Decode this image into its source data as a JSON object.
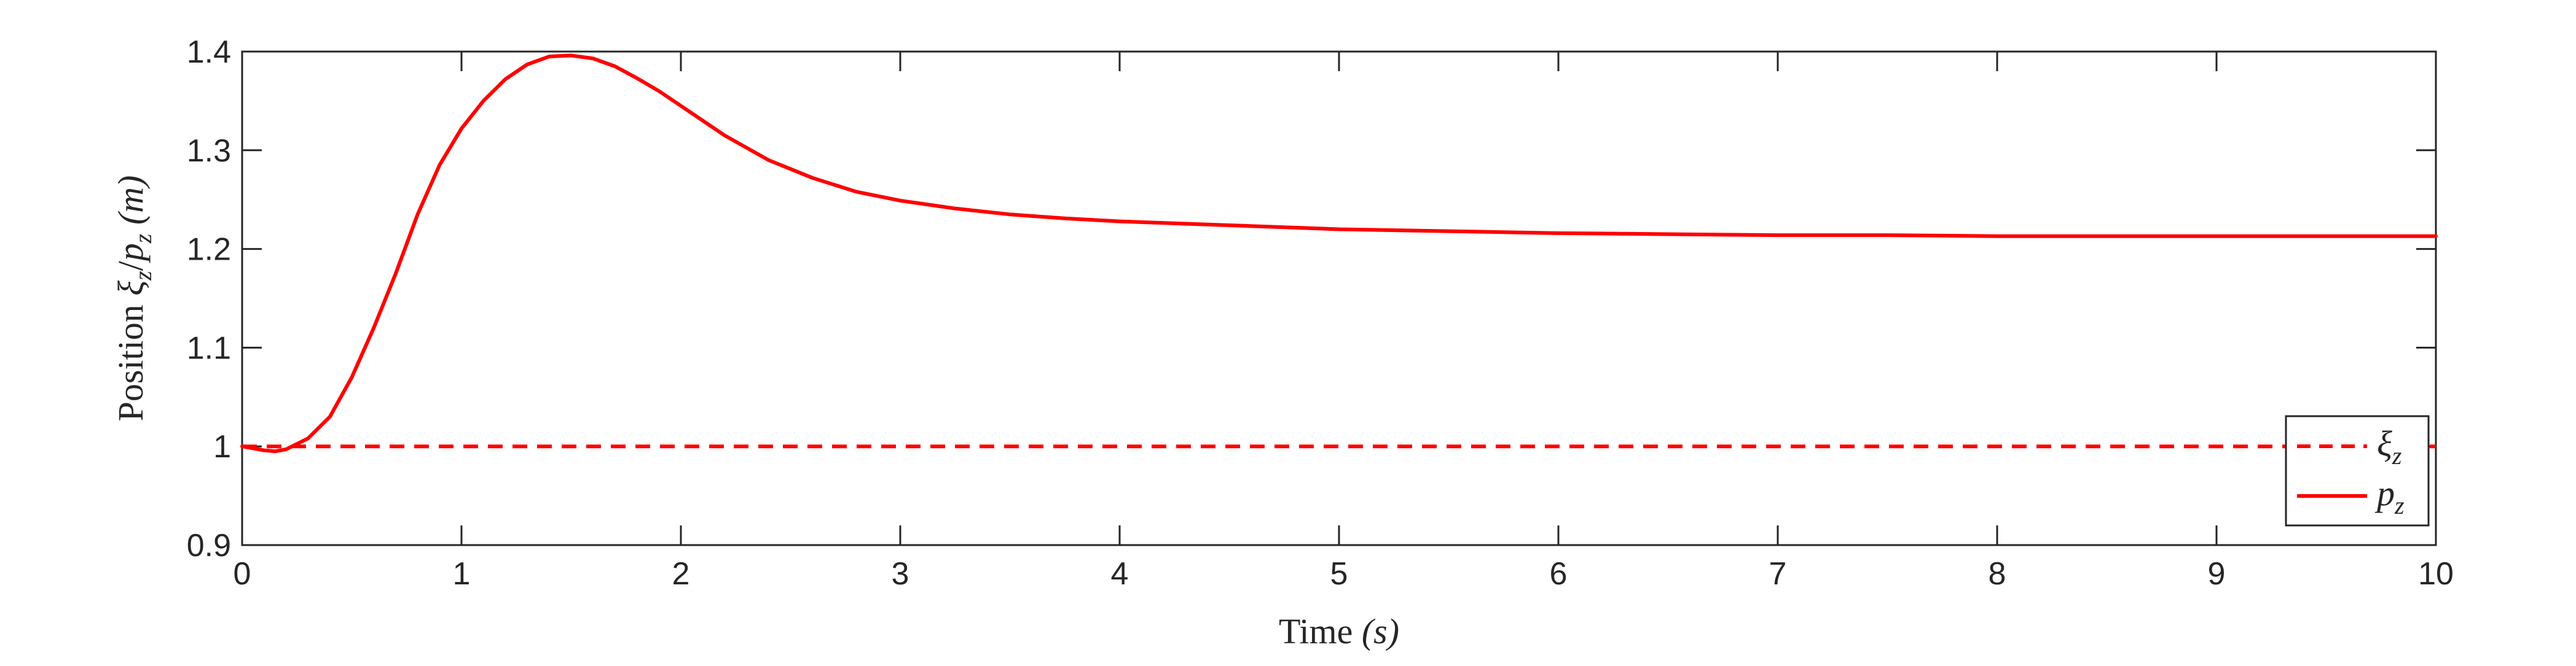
{
  "chart_data": {
    "type": "line",
    "xlabel": "Time (s)",
    "ylabel": "Position ξz/pz (m)",
    "xlim": [
      0,
      10
    ],
    "ylim": [
      0.9,
      1.4
    ],
    "xticks": [
      0,
      1,
      2,
      3,
      4,
      5,
      6,
      7,
      8,
      9,
      10
    ],
    "yticks": [
      0.9,
      1,
      1.1,
      1.2,
      1.3,
      1.4
    ],
    "xtick_labels": [
      "0",
      "1",
      "2",
      "3",
      "4",
      "5",
      "6",
      "7",
      "8",
      "9",
      "10"
    ],
    "ytick_labels": [
      "0.9",
      "1",
      "1.1",
      "1.2",
      "1.3",
      "1.4"
    ],
    "grid": false,
    "legend_position": "bottom-right",
    "series": [
      {
        "name": "ξz",
        "color": "#ff0000",
        "style": "dashed",
        "x": [
          0,
          10
        ],
        "y": [
          1.0,
          1.0
        ]
      },
      {
        "name": "pz",
        "color": "#ff0000",
        "style": "solid",
        "x": [
          0,
          0.1,
          0.15,
          0.2,
          0.3,
          0.4,
          0.5,
          0.6,
          0.7,
          0.8,
          0.9,
          1.0,
          1.1,
          1.2,
          1.3,
          1.4,
          1.5,
          1.6,
          1.7,
          1.8,
          1.9,
          2.0,
          2.2,
          2.4,
          2.6,
          2.8,
          3.0,
          3.25,
          3.5,
          3.75,
          4.0,
          4.5,
          5.0,
          5.5,
          6.0,
          6.5,
          7.0,
          7.5,
          8.0,
          8.5,
          9.0,
          9.5,
          10.0
        ],
        "y": [
          1.0,
          0.996,
          0.995,
          0.997,
          1.008,
          1.03,
          1.07,
          1.12,
          1.175,
          1.235,
          1.285,
          1.322,
          1.35,
          1.372,
          1.387,
          1.395,
          1.396,
          1.393,
          1.385,
          1.373,
          1.36,
          1.345,
          1.315,
          1.29,
          1.272,
          1.258,
          1.249,
          1.241,
          1.235,
          1.231,
          1.228,
          1.224,
          1.22,
          1.218,
          1.216,
          1.215,
          1.214,
          1.214,
          1.213,
          1.213,
          1.213,
          1.213,
          1.213
        ]
      }
    ],
    "legend": {
      "entries": [
        {
          "main": "ξ",
          "sub": "z"
        },
        {
          "main": "p",
          "sub": "z"
        }
      ]
    },
    "axis_text": {
      "x_main": "Time ",
      "x_var": "(s)",
      "y_main": "Position ",
      "y_xi": "ξ",
      "y_z1": "z",
      "y_slash": "/",
      "y_p": "p",
      "y_z2": "z",
      "y_unit": " (m)"
    }
  }
}
